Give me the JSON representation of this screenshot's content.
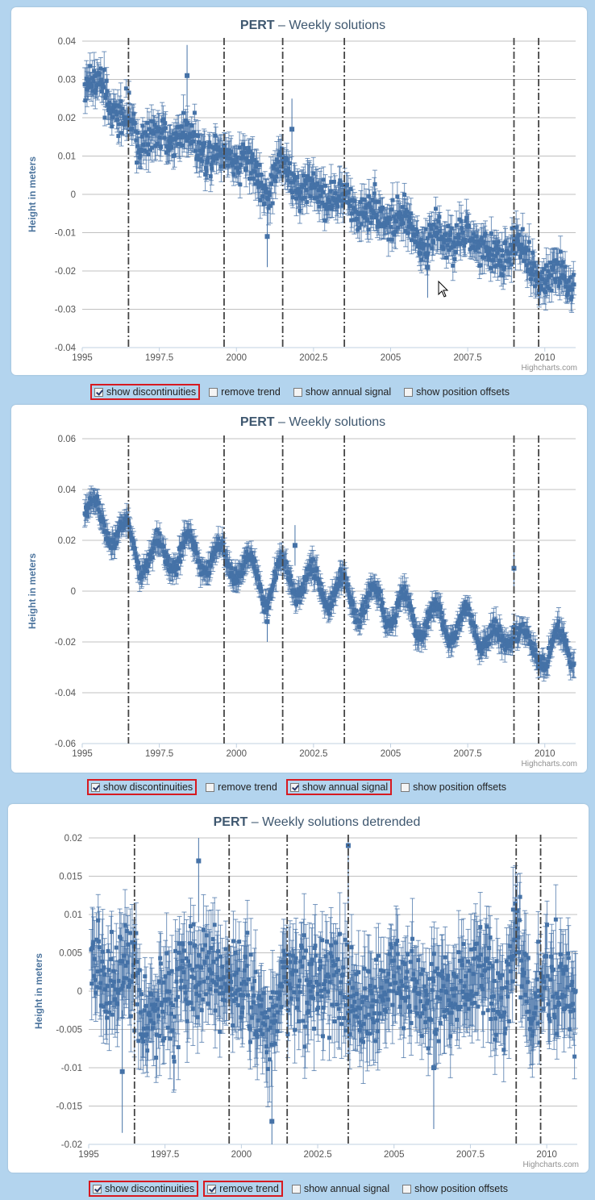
{
  "controls_labels": {
    "show_discontinuities": "show discontinuities",
    "remove_trend": "remove trend",
    "show_annual_signal": "show annual signal",
    "show_position_offsets": "show position offsets"
  },
  "credit": "Highcharts.com",
  "colors": {
    "series": "#4572a7",
    "grid": "#c0c0c0",
    "discontinuity": "#444444",
    "highlight": "#d71920"
  },
  "icons": {
    "pointer": "mouse-pointer-icon"
  },
  "chart_data": [
    {
      "type": "scatter",
      "title_bold": "PERT",
      "title": " – Weekly solutions",
      "ylabel": "Height in meters",
      "xlim": [
        1995,
        2011
      ],
      "ylim": [
        -0.04,
        0.04
      ],
      "xticks": [
        1995,
        1997.5,
        2000,
        2002.5,
        2005,
        2007.5,
        2010
      ],
      "xticklabels": [
        "1995",
        "1997.5",
        "2000",
        "2002.5",
        "2005",
        "2007.5",
        "2010"
      ],
      "yticks": [
        -0.04,
        -0.03,
        -0.02,
        -0.01,
        0,
        0.01,
        0.02,
        0.03,
        0.04
      ],
      "yticklabels": [
        "-0.04",
        "-0.03",
        "-0.02",
        "-0.01",
        "0",
        "0.01",
        "0.02",
        "0.03",
        "0.04"
      ],
      "grid": true,
      "error_bars": true,
      "discontinuities": [
        1996.5,
        1999.6,
        2001.5,
        2003.5,
        2009.0,
        2009.8
      ],
      "trend": [
        [
          1995.1,
          0.03
        ],
        [
          1995.6,
          0.027
        ],
        [
          1996.2,
          0.021
        ],
        [
          1996.8,
          0.015
        ],
        [
          1997.5,
          0.014
        ],
        [
          1998.2,
          0.016
        ],
        [
          1998.8,
          0.013
        ],
        [
          1999.5,
          0.01
        ],
        [
          2000.0,
          0.011
        ],
        [
          2000.5,
          0.006
        ],
        [
          2001.0,
          0.001
        ],
        [
          2001.5,
          0.008
        ],
        [
          2002.0,
          0.002
        ],
        [
          2003.0,
          0.0
        ],
        [
          2004.0,
          -0.004
        ],
        [
          2005.0,
          -0.006
        ],
        [
          2006.0,
          -0.011
        ],
        [
          2007.0,
          -0.012
        ],
        [
          2008.0,
          -0.013
        ],
        [
          2008.6,
          -0.019
        ],
        [
          2009.0,
          -0.01
        ],
        [
          2009.5,
          -0.02
        ],
        [
          2010.0,
          -0.021
        ],
        [
          2010.9,
          -0.022
        ]
      ],
      "annual_amplitude": 0.002,
      "scatter": 0.0035,
      "sigma": 0.0035,
      "outliers": [
        [
          2001.0,
          -0.011
        ],
        [
          2006.2,
          -0.019
        ],
        [
          2001.8,
          0.017
        ],
        [
          1998.4,
          0.031
        ]
      ],
      "cursor": true
    },
    {
      "type": "scatter",
      "title_bold": "PERT",
      "title": " – Weekly solutions",
      "ylabel": "Height in meters",
      "xlim": [
        1995,
        2011
      ],
      "ylim": [
        -0.06,
        0.06
      ],
      "xticks": [
        1995,
        1997.5,
        2000,
        2002.5,
        2005,
        2007.5,
        2010
      ],
      "xticklabels": [
        "1995",
        "1997.5",
        "2000",
        "2002.5",
        "2005",
        "2007.5",
        "2010"
      ],
      "yticks": [
        -0.06,
        -0.04,
        -0.02,
        0,
        0.02,
        0.04,
        0.06
      ],
      "yticklabels": [
        "-0.06",
        "-0.04",
        "-0.02",
        "0",
        "0.02",
        "0.04",
        "0.06"
      ],
      "grid": true,
      "error_bars": true,
      "discontinuities": [
        1996.5,
        1999.6,
        2001.5,
        2003.5,
        2009.0,
        2009.8
      ],
      "trend": [
        [
          1995.1,
          0.035
        ],
        [
          1995.6,
          0.026
        ],
        [
          1996.2,
          0.024
        ],
        [
          1996.8,
          0.014
        ],
        [
          1997.5,
          0.013
        ],
        [
          1998.2,
          0.016
        ],
        [
          1998.8,
          0.015
        ],
        [
          1999.5,
          0.011
        ],
        [
          2000.0,
          0.012
        ],
        [
          2000.5,
          0.006
        ],
        [
          2001.0,
          0.001
        ],
        [
          2001.5,
          0.007
        ],
        [
          2002.0,
          0.004
        ],
        [
          2003.0,
          0.001
        ],
        [
          2004.0,
          -0.004
        ],
        [
          2005.0,
          -0.006
        ],
        [
          2006.0,
          -0.011
        ],
        [
          2007.0,
          -0.013
        ],
        [
          2008.0,
          -0.015
        ],
        [
          2008.6,
          -0.024
        ],
        [
          2009.0,
          -0.01
        ],
        [
          2009.5,
          -0.026
        ],
        [
          2010.0,
          -0.022
        ],
        [
          2010.9,
          -0.023
        ]
      ],
      "annual_amplitude": 0.007,
      "scatter": 0.0022,
      "sigma": 0.004,
      "outliers": [
        [
          2001.0,
          -0.012
        ],
        [
          2001.9,
          0.018
        ],
        [
          2009.0,
          0.009
        ]
      ],
      "cursor": false
    },
    {
      "type": "scatter",
      "title_bold": "PERT",
      "title": " – Weekly solutions detrended",
      "ylabel": "Height in meters",
      "xlim": [
        1995,
        2011
      ],
      "ylim": [
        -0.02,
        0.02
      ],
      "xticks": [
        1995,
        1997.5,
        2000,
        2002.5,
        2005,
        2007.5,
        2010
      ],
      "xticklabels": [
        "1995",
        "1997.5",
        "2000",
        "2002.5",
        "2005",
        "2007.5",
        "2010"
      ],
      "yticks": [
        -0.02,
        -0.015,
        -0.01,
        -0.005,
        0,
        0.005,
        0.01,
        0.015,
        0.02
      ],
      "yticklabels": [
        "-0.02",
        "-0.015",
        "-0.01",
        "-0.005",
        "0",
        "0.005",
        "0.01",
        "0.015",
        "0.02"
      ],
      "grid": true,
      "error_bars": true,
      "discontinuities": [
        1996.5,
        1999.6,
        2001.5,
        2003.5,
        2009.0,
        2009.8
      ],
      "trend": [
        [
          1995.1,
          0.004
        ],
        [
          1995.6,
          0.001
        ],
        [
          1996.2,
          0.003
        ],
        [
          1996.8,
          -0.004
        ],
        [
          1997.5,
          -0.002
        ],
        [
          1998.2,
          0.002
        ],
        [
          1998.8,
          0.003
        ],
        [
          1999.5,
          0.001
        ],
        [
          2000.0,
          0.002
        ],
        [
          2000.5,
          -0.002
        ],
        [
          2001.0,
          -0.004
        ],
        [
          2001.5,
          0.003
        ],
        [
          2002.0,
          0.001
        ],
        [
          2003.0,
          0.001
        ],
        [
          2004.0,
          -0.002
        ],
        [
          2005.0,
          0.002
        ],
        [
          2006.0,
          -0.001
        ],
        [
          2007.0,
          0.0
        ],
        [
          2008.0,
          0.002
        ],
        [
          2008.6,
          -0.003
        ],
        [
          2009.0,
          0.008
        ],
        [
          2009.5,
          -0.003
        ],
        [
          2010.0,
          0.001
        ],
        [
          2010.9,
          0.0
        ]
      ],
      "annual_amplitude": 0.0,
      "scatter": 0.0045,
      "sigma": 0.004,
      "outliers": [
        [
          2001.0,
          -0.017
        ],
        [
          2003.5,
          0.019
        ],
        [
          1998.6,
          0.017
        ],
        [
          1996.1,
          -0.0105
        ],
        [
          2006.3,
          -0.01
        ]
      ],
      "cursor": false
    }
  ],
  "panels": [
    {
      "controls": [
        {
          "key": "show_discontinuities",
          "checked": true,
          "highlighted": true
        },
        {
          "key": "remove_trend",
          "checked": false,
          "highlighted": false
        },
        {
          "key": "show_annual_signal",
          "checked": false,
          "highlighted": false
        },
        {
          "key": "show_position_offsets",
          "checked": false,
          "highlighted": false
        }
      ]
    },
    {
      "controls": [
        {
          "key": "show_discontinuities",
          "checked": true,
          "highlighted": true
        },
        {
          "key": "remove_trend",
          "checked": false,
          "highlighted": false
        },
        {
          "key": "show_annual_signal",
          "checked": true,
          "highlighted": true
        },
        {
          "key": "show_position_offsets",
          "checked": false,
          "highlighted": false
        }
      ]
    },
    {
      "controls": [
        {
          "key": "show_discontinuities",
          "checked": true,
          "highlighted": true
        },
        {
          "key": "remove_trend",
          "checked": true,
          "highlighted": true
        },
        {
          "key": "show_annual_signal",
          "checked": false,
          "highlighted": false
        },
        {
          "key": "show_position_offsets",
          "checked": false,
          "highlighted": false
        }
      ]
    }
  ]
}
